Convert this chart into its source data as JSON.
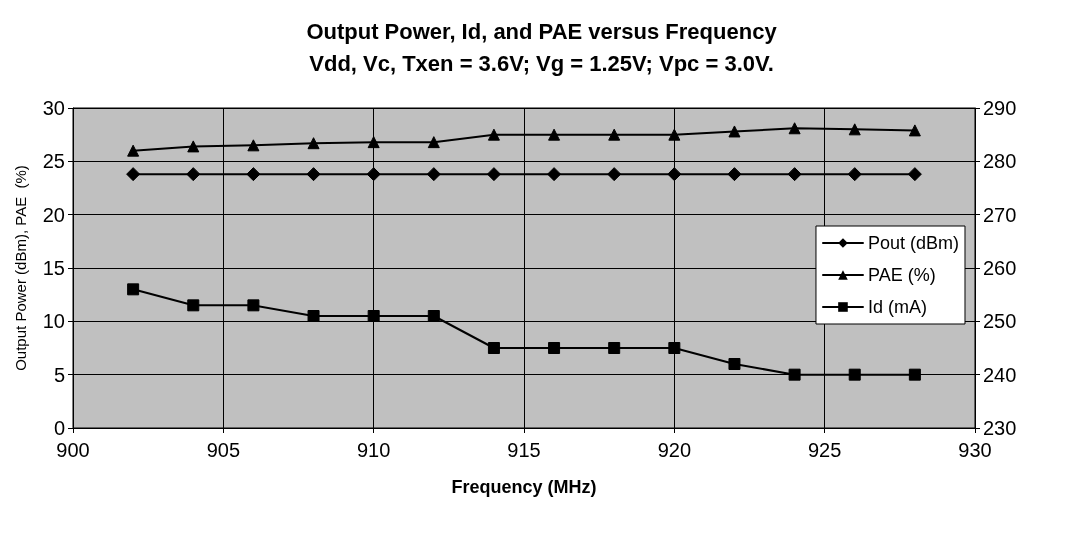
{
  "chart_data": {
    "type": "line",
    "title": "Output Power, Id, and PAE versus Frequency\nVdd, Vc, Txen = 3.6V; Vg = 1.25V; Vpc = 3.0V.",
    "xlabel": "Frequency (MHz)",
    "ylabel": "Output Power (dBm), PAE  (%)",
    "x": [
      902,
      904,
      906,
      908,
      910,
      912,
      914,
      916,
      918,
      920,
      922,
      924,
      926,
      928
    ],
    "series": [
      {
        "name": "Pout (dBm)",
        "color": "#000000",
        "marker": "diamond",
        "values": [
          23.8,
          23.8,
          23.8,
          23.8,
          23.8,
          23.8,
          23.8,
          23.8,
          23.8,
          23.8,
          23.8,
          23.8,
          23.8,
          23.8
        ]
      },
      {
        "name": "PAE (%)",
        "color": "#000000",
        "marker": "triangle",
        "values": [
          26,
          26.4,
          26.5,
          26.7,
          26.8,
          26.8,
          27.5,
          27.5,
          27.5,
          27.5,
          27.8,
          28.1,
          28,
          27.9
        ]
      },
      {
        "name": "Id (mA)",
        "color": "#000000",
        "marker": "square",
        "axis": "y2",
        "values": [
          256,
          253,
          253,
          251,
          251,
          251,
          245,
          245,
          245,
          245,
          242,
          240,
          240,
          240
        ]
      }
    ],
    "xlim": [
      900,
      930
    ],
    "xticks": [
      900,
      905,
      910,
      915,
      920,
      925,
      930
    ],
    "ylim": [
      0,
      30
    ],
    "yticks": [
      0,
      5,
      10,
      15,
      20,
      25,
      30
    ],
    "y2lim": [
      230,
      290
    ],
    "y2ticks": [
      230,
      240,
      250,
      260,
      270,
      280,
      290
    ],
    "grid": true,
    "legend": "right",
    "line_style": "solid"
  }
}
